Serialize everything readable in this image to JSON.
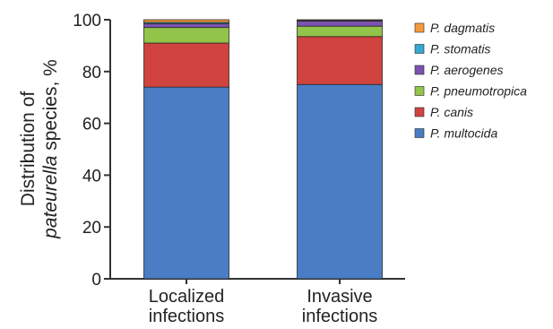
{
  "chart_data": {
    "type": "bar",
    "stacked": true,
    "categories": [
      [
        "Localized",
        "infections"
      ],
      [
        "Invasive",
        "infections"
      ]
    ],
    "ylabel": {
      "line1": "Distribution of",
      "line2_italic": "pateurella",
      "line2_rest": " species, %"
    },
    "ylim": [
      0,
      100
    ],
    "yticks": [
      0,
      20,
      40,
      60,
      80,
      100
    ],
    "series": [
      {
        "name": "P. multocida",
        "color": "#4a7dc4",
        "values": [
          74,
          75
        ]
      },
      {
        "name": "P. canis",
        "color": "#d0433f",
        "values": [
          17,
          18.5
        ]
      },
      {
        "name": "P. pneumotropica",
        "color": "#93c44a",
        "values": [
          6,
          4
        ]
      },
      {
        "name": "P. aerogenes",
        "color": "#7b52b0",
        "values": [
          1.5,
          2
        ]
      },
      {
        "name": "P. stomatis",
        "color": "#35a9cf",
        "values": [
          0.5,
          0.2
        ]
      },
      {
        "name": "P. dagmatis",
        "color": "#f59a3c",
        "values": [
          1,
          0.3
        ]
      }
    ],
    "legend_order": [
      "P. dagmatis",
      "P. stomatis",
      "P. aerogenes",
      "P. pneumotropica",
      "P. canis",
      "P. multocida"
    ],
    "legend_position": "top-right"
  }
}
